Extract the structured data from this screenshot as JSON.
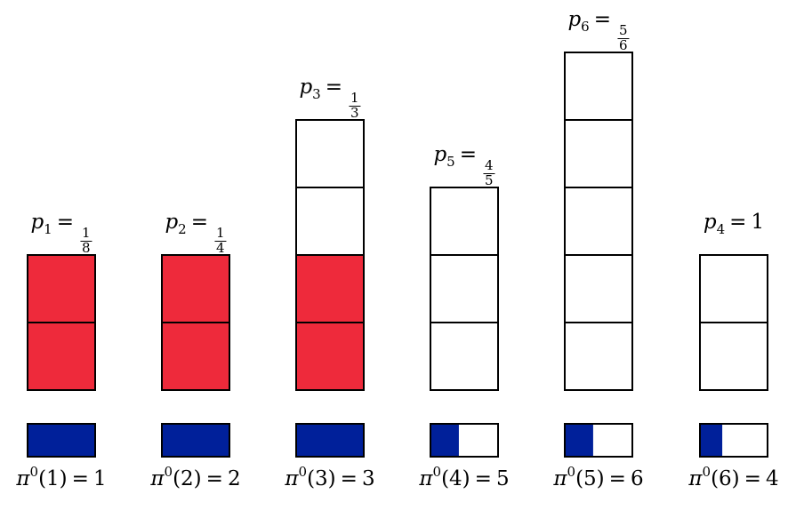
{
  "colors": {
    "filled": "#ee2a3b",
    "empty": "#ffffff",
    "bar_fill": "#00209a",
    "stroke": "#000000"
  },
  "columns": [
    {
      "p_sub": "1",
      "p_value": {
        "num": "1",
        "den": "8",
        "text": ""
      },
      "cells": 2,
      "filled": 2,
      "bar_fraction": 1.0,
      "pi": {
        "base": "π",
        "sup": "0",
        "arg": "(1)",
        "rhs": "1"
      }
    },
    {
      "p_sub": "2",
      "p_value": {
        "num": "1",
        "den": "4",
        "text": ""
      },
      "cells": 2,
      "filled": 2,
      "bar_fraction": 1.0,
      "pi": {
        "base": "π",
        "sup": "0",
        "arg": "(2)",
        "rhs": "2"
      }
    },
    {
      "p_sub": "3",
      "p_value": {
        "num": "1",
        "den": "3",
        "text": ""
      },
      "cells": 4,
      "filled": 2,
      "bar_fraction": 1.0,
      "pi": {
        "base": "π",
        "sup": "0",
        "arg": "(3)",
        "rhs": "3"
      }
    },
    {
      "p_sub": "5",
      "p_value": {
        "num": "4",
        "den": "5",
        "text": ""
      },
      "cells": 3,
      "filled": 0,
      "bar_fraction": 0.42,
      "pi": {
        "base": "π",
        "sup": "0",
        "arg": "(4)",
        "rhs": "5"
      }
    },
    {
      "p_sub": "6",
      "p_value": {
        "num": "5",
        "den": "6",
        "text": ""
      },
      "cells": 5,
      "filled": 0,
      "bar_fraction": 0.42,
      "pi": {
        "base": "π",
        "sup": "0",
        "arg": "(5)",
        "rhs": "6"
      }
    },
    {
      "p_sub": "4",
      "p_value": {
        "num": "",
        "den": "",
        "text": "1"
      },
      "cells": 2,
      "filled": 0,
      "bar_fraction": 0.33,
      "pi": {
        "base": "π",
        "sup": "0",
        "arg": "(6)",
        "rhs": "4"
      }
    }
  ],
  "p_symbol": "p",
  "equals": "="
}
